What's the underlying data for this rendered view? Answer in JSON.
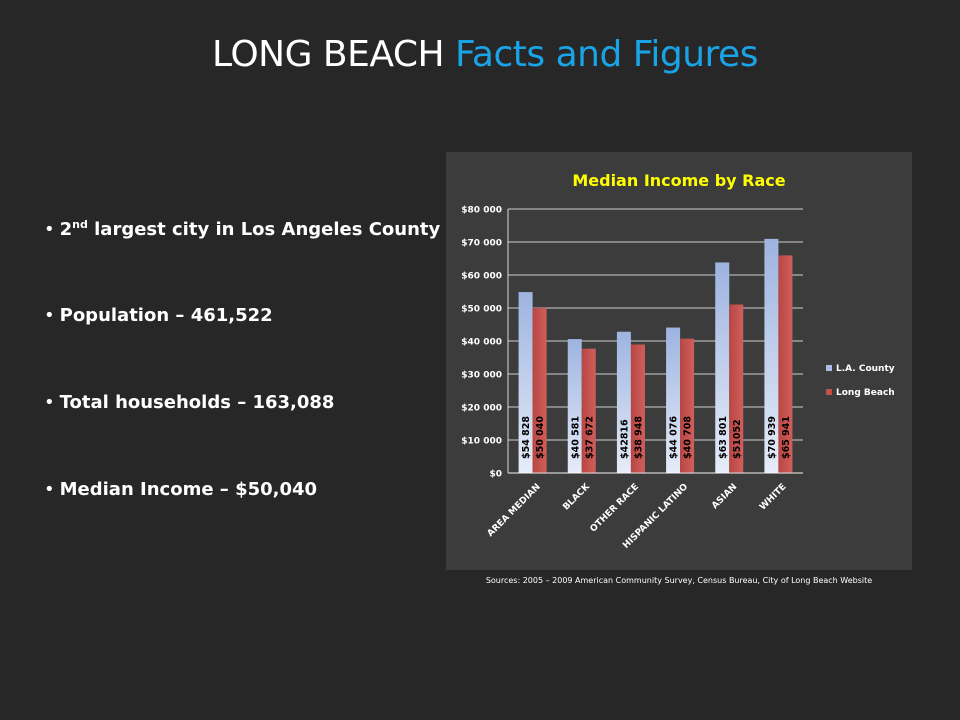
{
  "slide": {
    "title_main": "LONG BEACH",
    "title_accent": "Facts and Figures",
    "bullets": [
      {
        "prefix": "2",
        "sup": "nd",
        "text": " largest city in Los Angeles County"
      },
      {
        "text": "Population – 461,522"
      },
      {
        "text": "Total households – 163,088"
      },
      {
        "text": "Median Income – $50,040"
      }
    ],
    "sources": "Sources: 2005 – 2009 American Community Survey, Census Bureau, City of Long Beach Website"
  },
  "colors": {
    "background": "#272727",
    "accent": "#1aa4e8",
    "chart_title": "#ffff00",
    "la_county": "#a9bfe6",
    "long_beach": "#c0504d"
  },
  "chart_data": {
    "type": "bar",
    "title": "Median Income by Race",
    "xlabel": "",
    "ylabel": "",
    "categories": [
      "AREA MEDIAN",
      "BLACK",
      "OTHER RACE",
      "HISPANIC LATINO",
      "ASIAN",
      "WHITE"
    ],
    "series": [
      {
        "name": "L.A. County",
        "values": [
          54828,
          40581,
          42816,
          44076,
          63801,
          70939
        ],
        "labels": [
          "$54 828",
          "$40 581",
          "$42816",
          "$44 076",
          "$63 801",
          "$70 939"
        ]
      },
      {
        "name": "Long Beach",
        "values": [
          50040,
          37672,
          38948,
          40708,
          51052,
          65941
        ],
        "labels": [
          "$50 040",
          "$37 672",
          "$38 948",
          "$40 708",
          "$51052",
          "$65 941"
        ]
      }
    ],
    "ylim": [
      0,
      80000
    ],
    "y_ticks": [
      "$0",
      "$10 000",
      "$20 000",
      "$30 000",
      "$40 000",
      "$50 000",
      "$60 000",
      "$70 000",
      "$80 000"
    ],
    "grid": true,
    "legend_position": "right"
  }
}
